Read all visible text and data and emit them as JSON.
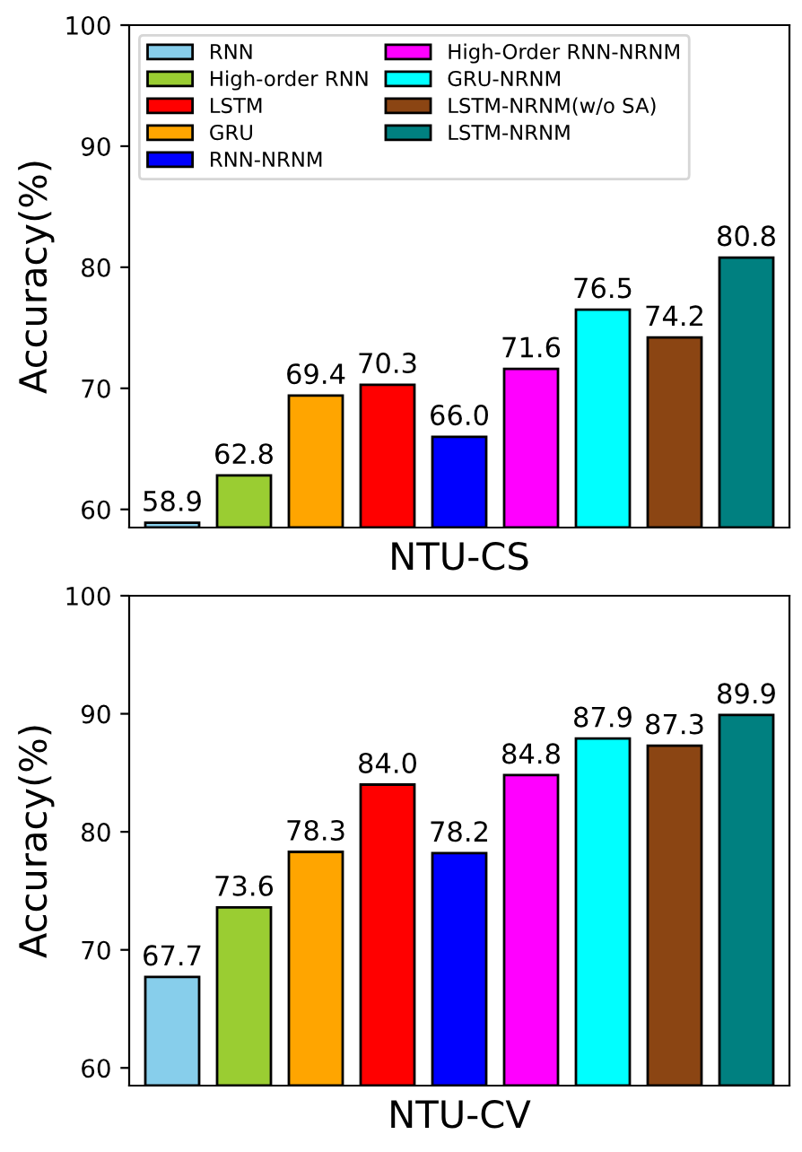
{
  "chart_data": [
    {
      "type": "bar",
      "xlabel": "NTU-CS",
      "ylabel": "Accuracy(%)",
      "categories": [
        null,
        null,
        null,
        null,
        null,
        null,
        null,
        null,
        null
      ],
      "series": [
        {
          "name": "RNN",
          "color": "#87ceeb",
          "values": [
            58.9,
            null,
            null,
            null,
            null,
            null,
            null,
            null,
            null
          ]
        },
        {
          "name": "High-order RNN",
          "color": "#9acd32",
          "values": [
            null,
            62.8,
            null,
            null,
            null,
            null,
            null,
            null,
            null
          ]
        },
        {
          "name": "LSTM",
          "color": "#ff0000",
          "values": [
            null,
            null,
            null,
            70.3,
            null,
            null,
            null,
            null,
            null
          ]
        },
        {
          "name": "GRU",
          "color": "#ffa500",
          "values": [
            null,
            null,
            69.4,
            null,
            null,
            null,
            null,
            null,
            null
          ]
        },
        {
          "name": "RNN-NRNM",
          "color": "#0000ff",
          "values": [
            null,
            null,
            null,
            null,
            66.0,
            null,
            null,
            null,
            null
          ]
        },
        {
          "name": "High-Order RNN-NRNM",
          "color": "#ff00ff",
          "values": [
            null,
            null,
            null,
            null,
            null,
            71.6,
            null,
            null,
            null
          ]
        },
        {
          "name": "GRU-NRNM",
          "color": "#00ffff",
          "values": [
            null,
            null,
            null,
            null,
            null,
            null,
            76.5,
            null,
            null
          ]
        },
        {
          "name": "LSTM-NRNM(w/o SA)",
          "color": "#8b4513",
          "values": [
            null,
            null,
            null,
            null,
            null,
            null,
            null,
            74.2,
            null
          ]
        },
        {
          "name": "LSTM-NRNM",
          "color": "#008080",
          "values": [
            null,
            null,
            null,
            null,
            null,
            null,
            null,
            null,
            80.8
          ]
        }
      ],
      "value_labels": [
        "58.9",
        "62.8",
        "69.4",
        "70.3",
        "66.0",
        "71.6",
        "76.5",
        "74.2",
        "80.8"
      ],
      "ylim": [
        58.5,
        100
      ],
      "yticks": [
        60,
        70,
        80,
        90,
        100
      ],
      "legend": "top left",
      "grid": false
    },
    {
      "type": "bar",
      "xlabel": "NTU-CV",
      "ylabel": "Accuracy(%)",
      "categories": [
        null,
        null,
        null,
        null,
        null,
        null,
        null,
        null,
        null
      ],
      "values": [
        67.7,
        73.6,
        78.3,
        84.0,
        78.2,
        84.8,
        87.9,
        87.3,
        89.9
      ],
      "colors": [
        "#87ceeb",
        "#9acd32",
        "#ffa500",
        "#ff0000",
        "#0000ff",
        "#ff00ff",
        "#00ffff",
        "#8b4513",
        "#008080"
      ],
      "value_labels": [
        "67.7",
        "73.6",
        "78.3",
        "84.0",
        "78.2",
        "84.8",
        "87.9",
        "87.3",
        "89.9"
      ],
      "ylim": [
        58.5,
        100
      ],
      "yticks": [
        60,
        70,
        80,
        90,
        100
      ],
      "grid": false
    }
  ]
}
